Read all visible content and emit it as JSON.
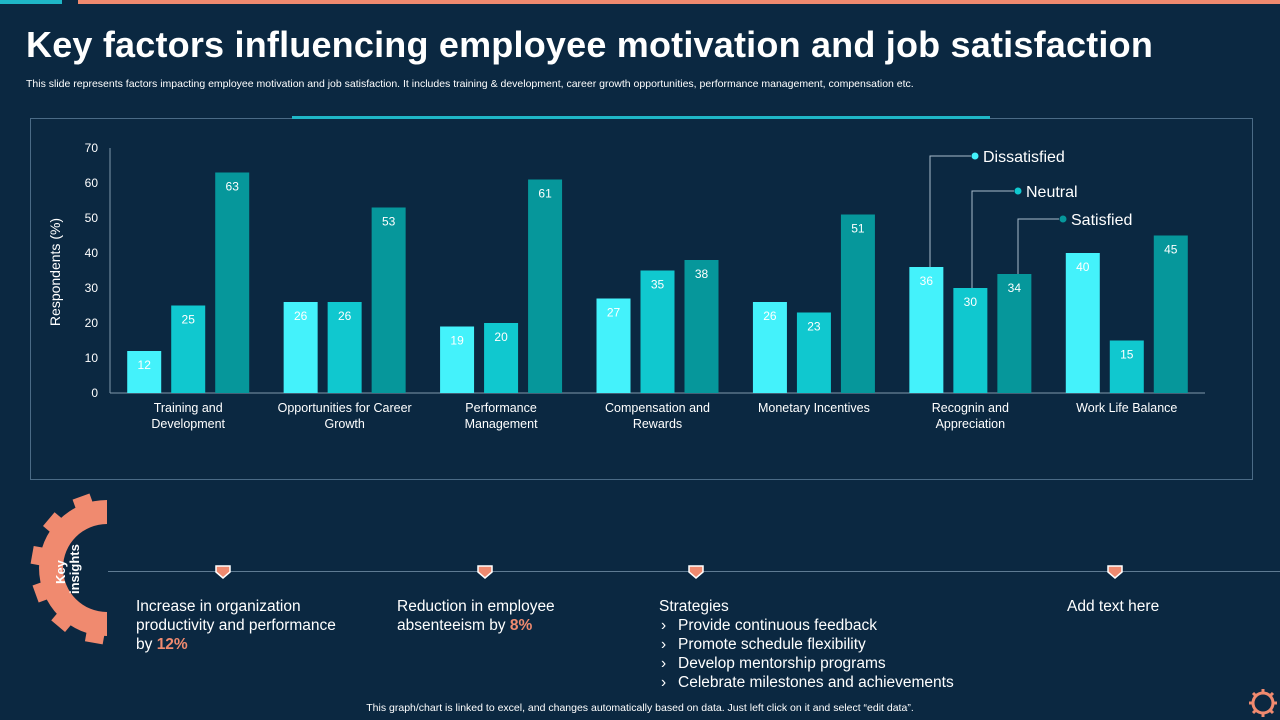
{
  "title": "Key factors influencing employee motivation and job satisfaction",
  "subtitle": "This slide represents factors impacting employee motivation and job satisfaction. It includes training & development, career growth opportunities, performance management, compensation etc.",
  "colors": {
    "background": "#0b2841",
    "dissatisfied": "#44f2fb",
    "neutral": "#10c8cf",
    "satisfied": "#06979b",
    "accent": "#f08a6f",
    "teal": "#1fb7c7"
  },
  "chart_data": {
    "type": "bar",
    "title": "",
    "xlabel": "",
    "ylabel": "Respondents  (%)",
    "ylim": [
      0,
      70
    ],
    "yticks": [
      0,
      10,
      20,
      30,
      40,
      50,
      60,
      70
    ],
    "categories": [
      [
        "Training and",
        "Development"
      ],
      [
        "Opportunities for Career",
        "Growth"
      ],
      [
        "Performance",
        "Management"
      ],
      [
        "Compensation and",
        "Rewards"
      ],
      [
        "Monetary Incentives"
      ],
      [
        "Recognin and",
        "Appreciation"
      ],
      [
        "Work Life Balance"
      ]
    ],
    "series": [
      {
        "name": "Dissatisfied",
        "values": [
          12,
          26,
          19,
          27,
          26,
          36,
          40
        ]
      },
      {
        "name": "Neutral",
        "values": [
          25,
          26,
          20,
          35,
          23,
          30,
          15
        ]
      },
      {
        "name": "Satisfied",
        "values": [
          63,
          53,
          61,
          38,
          51,
          34,
          45
        ]
      }
    ],
    "legend_placement": "top-right, callouts to Recognin and Appreciation bars"
  },
  "insights": {
    "heading": "Key insights",
    "item1": {
      "pre": "Increase  in organization productivity and performance by ",
      "value": "12%"
    },
    "item2": {
      "pre": "Reduction  in employee absenteeism by ",
      "value": "8%"
    },
    "item3": {
      "heading": "Strategies",
      "items": [
        "Provide continuous  feedback",
        "Promote schedule flexibility",
        "Develop mentorship programs",
        "Celebrate milestones and achievements"
      ]
    },
    "item4": "Add text here"
  },
  "footer": "This graph/chart is linked to excel,  and changes automatically based on data. Just left click on it and select “edit data”."
}
